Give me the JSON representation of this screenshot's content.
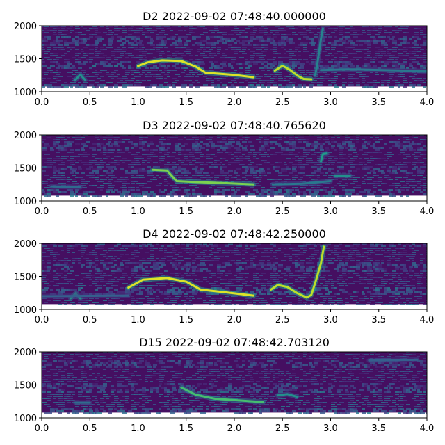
{
  "chart_data": [
    {
      "type": "heatmap",
      "title": "D2 2022-09-02 07:48:40.000000",
      "xlim": [
        0.0,
        4.0
      ],
      "ylim": [
        1000,
        2000
      ],
      "xticks": [
        "0.0",
        "0.5",
        "1.0",
        "1.5",
        "2.0",
        "2.5",
        "3.0",
        "3.5",
        "4.0"
      ],
      "yticks": [
        "1000",
        "1500",
        "2000"
      ],
      "colormap": "viridis",
      "band_low": 1080,
      "call_traces": [
        {
          "points": [
            [
              1.0,
              1390
            ],
            [
              1.1,
              1445
            ],
            [
              1.25,
              1475
            ],
            [
              1.45,
              1465
            ],
            [
              1.6,
              1380
            ],
            [
              1.7,
              1290
            ],
            [
              2.0,
              1255
            ],
            [
              2.2,
              1220
            ]
          ],
          "intensity": 0.95
        },
        {
          "points": [
            [
              2.42,
              1320
            ],
            [
              2.5,
              1395
            ],
            [
              2.58,
              1330
            ],
            [
              2.66,
              1240
            ],
            [
              2.72,
              1195
            ],
            [
              2.8,
              1190
            ]
          ],
          "intensity": 0.9
        },
        {
          "points": [
            [
              2.84,
              1250
            ],
            [
              2.86,
              1400
            ],
            [
              2.88,
              1600
            ],
            [
              2.9,
              1800
            ],
            [
              2.92,
              1960
            ]
          ],
          "intensity": 0.45
        },
        {
          "points": [
            [
              0.35,
              1180
            ],
            [
              0.4,
              1260
            ],
            [
              0.45,
              1180
            ]
          ],
          "intensity": 0.5
        },
        {
          "points": [
            [
              2.9,
              1330
            ],
            [
              3.2,
              1340
            ],
            [
              3.8,
              1320
            ],
            [
              4.0,
              1310
            ]
          ],
          "intensity": 0.4
        }
      ]
    },
    {
      "type": "heatmap",
      "title": "D3 2022-09-02 07:48:40.765620",
      "xlim": [
        0.0,
        4.0
      ],
      "ylim": [
        1000,
        2000
      ],
      "xticks": [
        "0.0",
        "0.5",
        "1.0",
        "1.5",
        "2.0",
        "2.5",
        "3.0",
        "3.5",
        "4.0"
      ],
      "yticks": [
        "1000",
        "1500",
        "2000"
      ],
      "colormap": "viridis",
      "band_low": 1080,
      "call_traces": [
        {
          "points": [
            [
              1.15,
              1470
            ],
            [
              1.3,
              1460
            ],
            [
              1.4,
              1300
            ],
            [
              1.6,
              1285
            ],
            [
              1.9,
              1270
            ],
            [
              2.2,
              1250
            ]
          ],
          "intensity": 0.8
        },
        {
          "points": [
            [
              2.9,
              1600
            ],
            [
              2.92,
              1710
            ],
            [
              2.96,
              1720
            ]
          ],
          "intensity": 0.55
        },
        {
          "points": [
            [
              3.05,
              1380
            ],
            [
              3.2,
              1380
            ]
          ],
          "intensity": 0.5
        },
        {
          "points": [
            [
              2.4,
              1250
            ],
            [
              2.7,
              1260
            ],
            [
              3.0,
              1300
            ]
          ],
          "intensity": 0.4
        },
        {
          "points": [
            [
              0.1,
              1220
            ],
            [
              0.4,
              1210
            ]
          ],
          "intensity": 0.35
        }
      ]
    },
    {
      "type": "heatmap",
      "title": "D4 2022-09-02 07:48:42.250000",
      "xlim": [
        0.0,
        4.0
      ],
      "ylim": [
        1000,
        2000
      ],
      "xticks": [
        "0.0",
        "0.5",
        "1.0",
        "1.5",
        "2.0",
        "2.5",
        "3.0",
        "3.5",
        "4.0"
      ],
      "yticks": [
        "1000",
        "1500",
        "2000"
      ],
      "colormap": "viridis",
      "band_low": 1080,
      "call_traces": [
        {
          "points": [
            [
              0.9,
              1330
            ],
            [
              1.05,
              1450
            ],
            [
              1.3,
              1475
            ],
            [
              1.5,
              1420
            ],
            [
              1.65,
              1300
            ],
            [
              1.9,
              1260
            ],
            [
              2.2,
              1210
            ]
          ],
          "intensity": 0.95
        },
        {
          "points": [
            [
              2.38,
              1300
            ],
            [
              2.45,
              1370
            ],
            [
              2.55,
              1340
            ],
            [
              2.65,
              1250
            ],
            [
              2.75,
              1180
            ],
            [
              2.8,
              1220
            ],
            [
              2.85,
              1450
            ],
            [
              2.9,
              1700
            ],
            [
              2.93,
              1950
            ]
          ],
          "intensity": 0.9
        },
        {
          "points": [
            [
              0.3,
              1170
            ],
            [
              0.35,
              1240
            ],
            [
              0.4,
              1170
            ]
          ],
          "intensity": 0.55
        },
        {
          "points": [
            [
              0.0,
              1200
            ],
            [
              0.9,
              1210
            ]
          ],
          "intensity": 0.3
        }
      ]
    },
    {
      "type": "heatmap",
      "title": "D15 2022-09-02 07:48:42.703120",
      "xlim": [
        0.0,
        4.0
      ],
      "ylim": [
        1000,
        2000
      ],
      "xticks": [
        "0.0",
        "0.5",
        "1.0",
        "1.5",
        "2.0",
        "2.5",
        "3.0",
        "3.5",
        "4.0"
      ],
      "yticks": [
        "1000",
        "1500",
        "2000"
      ],
      "colormap": "viridis",
      "band_low": 1080,
      "call_traces": [
        {
          "points": [
            [
              1.45,
              1460
            ],
            [
              1.6,
              1350
            ],
            [
              1.8,
              1290
            ],
            [
              2.0,
              1270
            ],
            [
              2.3,
              1240
            ]
          ],
          "intensity": 0.7
        },
        {
          "points": [
            [
              2.45,
              1340
            ],
            [
              2.55,
              1360
            ],
            [
              2.65,
              1320
            ]
          ],
          "intensity": 0.5
        },
        {
          "points": [
            [
              0.35,
              1230
            ],
            [
              0.5,
              1230
            ]
          ],
          "intensity": 0.35
        },
        {
          "points": [
            [
              3.4,
              1870
            ],
            [
              3.9,
              1880
            ]
          ],
          "intensity": 0.3
        }
      ]
    }
  ]
}
